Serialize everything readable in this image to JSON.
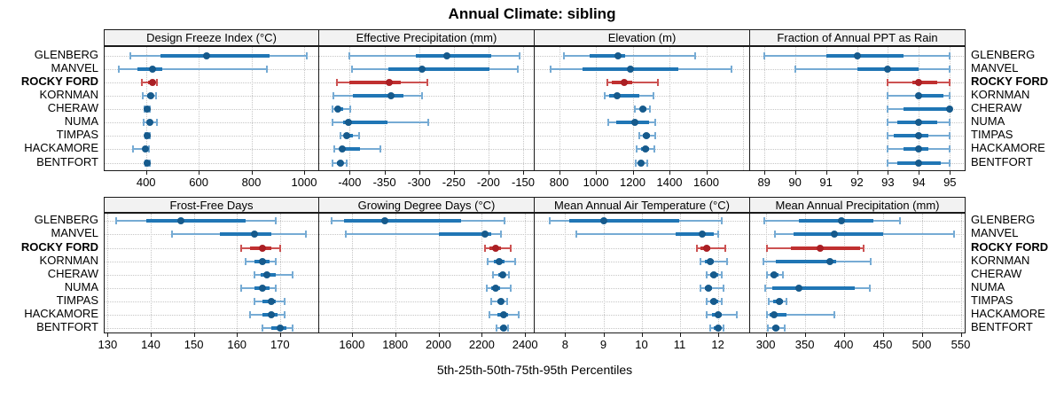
{
  "title": "Annual Climate: sibling",
  "xlabel": "5th-25th-50th-75th-95th Percentiles",
  "highlight_station": "ROCKY FORD",
  "colors": {
    "blue_whisker": "#76abd4",
    "blue_bar": "#2076b5",
    "blue_dot": "#165a8c",
    "red_whisker": "#cc5252",
    "red_bar": "#c03030",
    "red_dot": "#aa1f24",
    "grid": "#c6c6c6",
    "strip_bg": "#f2f2f2",
    "border": "#1a1a1a"
  },
  "chart_data": {
    "type": "dotplot-percentiles",
    "percentiles": [
      5,
      25,
      50,
      75,
      95
    ],
    "stations": [
      "GLENBERG",
      "MANVEL",
      "ROCKY FORD",
      "KORNMAN",
      "CHERAW",
      "NUMA",
      "TIMPAS",
      "HACKAMORE",
      "BENTFORT"
    ],
    "panels": [
      {
        "title": "Design Freeze Index (°C)",
        "row": 0,
        "col": 0,
        "xlim": [
          243,
          1054
        ],
        "ticks": [
          400,
          600,
          800,
          1000
        ],
        "extra_grid": [],
        "series": [
          [
            342,
            455,
            630,
            868,
            1010
          ],
          [
            297,
            368,
            424,
            462,
            857
          ],
          [
            385,
            408,
            423,
            431,
            440
          ],
          [
            389,
            404,
            418,
            428,
            438
          ],
          [
            395,
            400,
            405,
            409,
            414
          ],
          [
            390,
            404,
            415,
            426,
            440
          ],
          [
            396,
            400,
            404,
            408,
            413
          ],
          [
            352,
            390,
            399,
            406,
            412
          ],
          [
            396,
            401,
            405,
            409,
            414
          ]
        ]
      },
      {
        "title": "Effective Precipitation (mm)",
        "row": 0,
        "col": 1,
        "xlim": [
          -444,
          -136
        ],
        "ticks": [
          -400,
          -350,
          -300,
          -250,
          -200,
          -150
        ],
        "extra_grid": [],
        "series": [
          [
            -400,
            -305,
            -260,
            -196,
            -155
          ],
          [
            -397,
            -345,
            -296,
            -199,
            -158
          ],
          [
            -418,
            -400,
            -343,
            -326,
            -288
          ],
          [
            -424,
            -395,
            -341,
            -322,
            -296
          ],
          [
            -425,
            -421,
            -417,
            -410,
            -399
          ],
          [
            -425,
            -410,
            -402,
            -345,
            -287
          ],
          [
            -414,
            -408,
            -404,
            -396,
            -387
          ],
          [
            -422,
            -414,
            -411,
            -385,
            -356
          ],
          [
            -425,
            -419,
            -414,
            -409,
            -404
          ]
        ]
      },
      {
        "title": "Elevation (m)",
        "row": 0,
        "col": 2,
        "xlim": [
          667,
          1829
        ],
        "ticks": [
          800,
          1000,
          1200,
          1400,
          1600
        ],
        "extra_grid": [
          1800
        ],
        "series": [
          [
            825,
            965,
            1122,
            1158,
            1541
          ],
          [
            755,
            925,
            1188,
            1449,
            1735
          ],
          [
            1060,
            1085,
            1154,
            1196,
            1338
          ],
          [
            1046,
            1070,
            1114,
            1234,
            1315
          ],
          [
            1211,
            1240,
            1257,
            1276,
            1295
          ],
          [
            1066,
            1110,
            1214,
            1290,
            1323
          ],
          [
            1237,
            1256,
            1275,
            1296,
            1323
          ],
          [
            1221,
            1245,
            1269,
            1291,
            1318
          ],
          [
            1215,
            1230,
            1245,
            1262,
            1280
          ]
        ]
      },
      {
        "title": "Fraction of Annual PPT as Rain",
        "row": 0,
        "col": 3,
        "xlim": [
          88.55,
          95.45
        ],
        "ticks": [
          89,
          90,
          91,
          92,
          93,
          94,
          95
        ],
        "extra_grid": [],
        "series": [
          [
            89,
            91,
            92,
            93.5,
            95
          ],
          [
            90,
            92,
            93,
            94,
            95
          ],
          [
            93,
            93.8,
            94,
            94.6,
            95
          ],
          [
            93,
            93.9,
            94,
            94.8,
            95
          ],
          [
            93,
            93.5,
            95,
            95,
            95
          ],
          [
            93,
            93.3,
            94,
            94.6,
            95
          ],
          [
            93,
            93.2,
            94,
            94.3,
            95
          ],
          [
            93,
            93.5,
            94,
            94.3,
            95
          ],
          [
            93,
            93.3,
            94,
            94.7,
            95
          ]
        ]
      },
      {
        "title": "Frost-Free Days",
        "row": 1,
        "col": 0,
        "xlim": [
          129.3,
          178.9
        ],
        "ticks": [
          130,
          140,
          150,
          160,
          170
        ],
        "extra_grid": [],
        "series": [
          [
            132,
            139,
            147,
            162,
            169
          ],
          [
            145,
            156,
            164,
            168,
            176
          ],
          [
            161,
            163,
            166,
            168,
            170
          ],
          [
            162,
            164,
            166,
            167.5,
            169
          ],
          [
            164,
            165.5,
            167,
            169,
            173
          ],
          [
            161,
            164,
            166,
            167.5,
            169
          ],
          [
            164,
            166,
            168,
            169,
            171
          ],
          [
            163,
            166,
            168,
            169.5,
            171
          ],
          [
            166,
            168,
            170,
            171.5,
            173
          ]
        ]
      },
      {
        "title": "Growing Degree Days (°C)",
        "row": 1,
        "col": 1,
        "xlim": [
          1449,
          2436
        ],
        "ticks": [
          1600,
          1800,
          2000,
          2200,
          2400
        ],
        "extra_grid": [],
        "series": [
          [
            1508,
            1565,
            1750,
            2103,
            2305
          ],
          [
            1570,
            2000,
            2213,
            2245,
            2290
          ],
          [
            2215,
            2235,
            2263,
            2290,
            2335
          ],
          [
            2228,
            2255,
            2280,
            2305,
            2352
          ],
          [
            2250,
            2275,
            2297,
            2310,
            2325
          ],
          [
            2224,
            2245,
            2264,
            2285,
            2334
          ],
          [
            2245,
            2270,
            2290,
            2302,
            2316
          ],
          [
            2235,
            2270,
            2300,
            2322,
            2370
          ],
          [
            2268,
            2285,
            2300,
            2312,
            2323
          ]
        ]
      },
      {
        "title": "Mean Annual Air Temperature (°C)",
        "row": 1,
        "col": 2,
        "xlim": [
          7.2,
          12.8
        ],
        "ticks": [
          8,
          9,
          10,
          11,
          12
        ],
        "extra_grid": [],
        "series": [
          [
            7.6,
            8.1,
            9.0,
            11.0,
            12.1
          ],
          [
            8.3,
            10.9,
            11.6,
            11.9,
            12.0
          ],
          [
            11.45,
            11.55,
            11.7,
            11.8,
            12.2
          ],
          [
            11.55,
            11.65,
            11.8,
            11.9,
            12.25
          ],
          [
            11.7,
            11.8,
            11.9,
            12.0,
            12.1
          ],
          [
            11.55,
            11.65,
            11.75,
            11.85,
            12.15
          ],
          [
            11.7,
            11.8,
            11.9,
            12.0,
            12.1
          ],
          [
            11.7,
            11.85,
            12.0,
            12.1,
            12.5
          ],
          [
            11.8,
            11.9,
            12.0,
            12.05,
            12.15
          ]
        ]
      },
      {
        "title": "Mean Annual Precipitation (mm)",
        "row": 1,
        "col": 3,
        "xlim": [
          280,
          554
        ],
        "ticks": [
          300,
          350,
          400,
          450,
          500,
          550
        ],
        "extra_grid": [],
        "series": [
          [
            298,
            342,
            397,
            438,
            472
          ],
          [
            312,
            336,
            388,
            451,
            542
          ],
          [
            301,
            332,
            370,
            421,
            425
          ],
          [
            297,
            313,
            382,
            390,
            435
          ],
          [
            301,
            306,
            311,
            316,
            322
          ],
          [
            299,
            308,
            342,
            414,
            433
          ],
          [
            304,
            309,
            318,
            322,
            326
          ],
          [
            301,
            305,
            311,
            326,
            388
          ],
          [
            303,
            308,
            313,
            318,
            324
          ]
        ]
      }
    ]
  }
}
